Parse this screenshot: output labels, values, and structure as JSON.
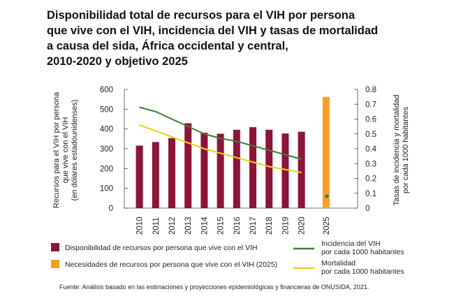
{
  "chart_data": {
    "type": "bar",
    "title_lines": [
      "Disponibilidad total de recursos para el VIH por persona",
      "que vive con el VIH, incidencia del VIH y tasas de mortalidad",
      "a causa del sida, África occidental y central,",
      "2010-2020 y objetivo 2025"
    ],
    "categories": [
      "2010",
      "2011",
      "2012",
      "2013",
      "2014",
      "2015",
      "2016",
      "2017",
      "2018",
      "2019",
      "2020",
      "2025"
    ],
    "series": [
      {
        "name": "Disponibilidad de recursos por persona que vive con el VIH",
        "type": "bar",
        "axis": "left",
        "color": "#8b1538",
        "values": [
          316,
          334,
          354,
          429,
          381,
          376,
          396,
          409,
          396,
          377,
          386,
          null
        ]
      },
      {
        "name": "Necesidades de recursos por persona que vive con el VIH (2025)",
        "type": "bar",
        "axis": "left",
        "color": "#f5a024",
        "values": [
          null,
          null,
          null,
          null,
          null,
          null,
          null,
          null,
          null,
          null,
          null,
          562
        ]
      },
      {
        "name": "Incidencia del VIH por cada 1000 habitantes",
        "legend_lines": [
          "Incidencia del VIH",
          "por cada 1000 habitantes"
        ],
        "type": "line",
        "axis": "right",
        "color": "#3f7d3a",
        "values": [
          0.68,
          0.65,
          0.6,
          0.55,
          0.5,
          0.47,
          0.45,
          0.42,
          0.39,
          0.36,
          0.33,
          0.08
        ]
      },
      {
        "name": "Mortalidad por cada 1000 habitantes",
        "legend_lines": [
          "Mortalidad",
          "por cada 1000 habitantes"
        ],
        "type": "line",
        "axis": "right",
        "color": "#f2cf1d",
        "values": [
          0.56,
          0.52,
          0.48,
          0.44,
          0.4,
          0.37,
          0.34,
          0.31,
          0.28,
          0.26,
          0.24,
          null
        ]
      }
    ],
    "y_left": {
      "label_lines": [
        "Recursos para el VIH por persona",
        "que vive con el VIH",
        "(en dólares estadounidenses)"
      ],
      "ylim": [
        0,
        600
      ],
      "ticks": [
        0,
        100,
        200,
        300,
        400,
        500,
        600
      ]
    },
    "y_right": {
      "label_lines": [
        "Tasas de incidencia y mortalidad",
        "por cada 1000 habitantes"
      ],
      "ylim": [
        0,
        0.8
      ],
      "ticks": [
        "0",
        "0.1",
        "0.2",
        "0.3",
        "0.4",
        "0.5",
        "0.6",
        "0.7",
        "0.8"
      ]
    },
    "grid": false,
    "legend_position": "bottom",
    "source": "Fuente: Análisis basado en las estimaciones y proyecciones epidemiológicas y financieras de ONUSIDA, 2021."
  }
}
